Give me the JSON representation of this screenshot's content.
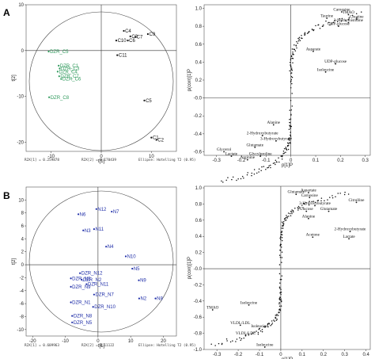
{
  "panels": [
    {
      "id": "A",
      "score": {
        "xlim": [
          -15,
          15
        ],
        "ylim": [
          -22,
          10
        ],
        "xticks": [
          -10,
          0,
          10
        ],
        "yticks": [
          10,
          0,
          -10,
          -20
        ],
        "xlabel": "t[1]",
        "ylabel": "t[2]",
        "footer": {
          "r2x1": "R2X[1] = 0.259878",
          "r2x2": "R2X[2] = 0.170439",
          "ellipse": "Ellipse: Hotelling T2 (0.95)"
        },
        "points": [
          {
            "name": "C4",
            "x": 4.5,
            "y": 4.3,
            "group": "C"
          },
          {
            "name": "C9",
            "x": 9.3,
            "y": 3.6,
            "group": "C"
          },
          {
            "name": "C3",
            "x": 5.8,
            "y": 3.1,
            "group": "C"
          },
          {
            "name": "C7",
            "x": 6.8,
            "y": 3.0,
            "group": "C"
          },
          {
            "name": "C10",
            "x": 3.0,
            "y": 2.2,
            "group": "C"
          },
          {
            "name": "C6",
            "x": 5.3,
            "y": 2.2,
            "group": "C"
          },
          {
            "name": "C11",
            "x": 3.2,
            "y": -1.0,
            "group": "C"
          },
          {
            "name": "C5",
            "x": 8.6,
            "y": -10.9,
            "group": "C"
          },
          {
            "name": "C1",
            "x": 10.0,
            "y": -19.0,
            "group": "C"
          },
          {
            "name": "C2",
            "x": 11.0,
            "y": -19.5,
            "group": "C"
          },
          {
            "name": "DZR_C5",
            "x": -10.5,
            "y": -0.2,
            "group": "D"
          },
          {
            "name": "DZR_C1",
            "x": -8.5,
            "y": -3.3,
            "group": "D"
          },
          {
            "name": "DZR_C3",
            "x": -8.3,
            "y": -3.9,
            "group": "D"
          },
          {
            "name": "DZR_C4",
            "x": -8.7,
            "y": -4.6,
            "group": "D"
          },
          {
            "name": "DZR_C7",
            "x": -8.4,
            "y": -5.6,
            "group": "D"
          },
          {
            "name": "DZR_C6",
            "x": -8.0,
            "y": -6.2,
            "group": "D"
          },
          {
            "name": "DZR_C8",
            "x": -10.4,
            "y": -10.2,
            "group": "D"
          }
        ]
      },
      "loading": {
        "xlim": [
          -0.35,
          0.32
        ],
        "ylim": [
          -0.64,
          1.04
        ],
        "xticks": [
          -0.3,
          -0.2,
          -0.1,
          0,
          0.1,
          0.2,
          0.3
        ],
        "xticklabels": [
          "-0.3",
          "-0.2",
          "-0.1",
          "0",
          "0.1",
          "0.2",
          "0.3"
        ],
        "yticks": [
          1,
          0.8,
          0.6,
          0.4,
          0.2,
          0,
          -0.2,
          -0.4,
          -0.6
        ],
        "yticklabels": [
          "1.0",
          "0.8",
          "0.6",
          "0.4",
          "0.2",
          "-0.0",
          "-0.2",
          "-0.4",
          "-0.6"
        ],
        "xlabel": "p[1]P",
        "ylabel": "p(corr)[1]P",
        "labels": [
          {
            "name": "Carnosine",
            "x": 0.205,
            "y": 0.96
          },
          {
            "name": "TMAO",
            "x": 0.232,
            "y": 0.93
          },
          {
            "name": "Taurine",
            "x": 0.145,
            "y": 0.89
          },
          {
            "name": "Creatine",
            "x": 0.265,
            "y": 0.88
          },
          {
            "name": "3-Methylhistidine",
            "x": 0.232,
            "y": 0.84
          },
          {
            "name": "UDP-glucose",
            "x": 0.192,
            "y": 0.8
          },
          {
            "name": "Asparate",
            "x": 0.09,
            "y": 0.52
          },
          {
            "name": "UDP-glucose",
            "x": 0.18,
            "y": 0.38
          },
          {
            "name": "Isoleucine",
            "x": 0.14,
            "y": 0.29
          },
          {
            "name": "Alanine",
            "x": -0.07,
            "y": -0.3
          },
          {
            "name": "2-Hydroxybutyrate",
            "x": -0.115,
            "y": -0.42
          },
          {
            "name": "3-Hydroxybutyrate",
            "x": -0.06,
            "y": -0.48
          },
          {
            "name": "Glutamate",
            "x": -0.145,
            "y": -0.55
          },
          {
            "name": "Glycerol",
            "x": -0.27,
            "y": -0.6
          },
          {
            "name": "Lactate",
            "x": -0.24,
            "y": -0.65
          },
          {
            "name": "Glycylproline",
            "x": -0.123,
            "y": -0.65
          },
          {
            "name": "Arginine",
            "x": -0.175,
            "y": -0.69
          }
        ]
      }
    },
    {
      "id": "B",
      "score": {
        "xlim": [
          -22,
          24
        ],
        "ylim": [
          -11,
          12
        ],
        "xticks": [
          -20,
          -10,
          0,
          10,
          20
        ],
        "yticks": [
          10,
          8,
          6,
          4,
          2,
          0,
          -2,
          -4,
          -6,
          -8,
          -10
        ],
        "xlabel": "t[1]",
        "ylabel": "t[2]",
        "footer": {
          "r2x1": "R2X[1] = 0.609963",
          "r2x2": "R2X[2] = 0.11122",
          "ellipse": "Ellipse: Hotelling T2 (0.95)"
        },
        "points": [
          {
            "name": "N12",
            "x": -0.5,
            "y": 8.6,
            "group": "N"
          },
          {
            "name": "N7",
            "x": 4.2,
            "y": 8.2,
            "group": "N"
          },
          {
            "name": "N6",
            "x": -6.0,
            "y": 7.8,
            "group": "N"
          },
          {
            "name": "N3",
            "x": -4.5,
            "y": 5.3,
            "group": "N"
          },
          {
            "name": "N11",
            "x": -1.2,
            "y": 5.5,
            "group": "N"
          },
          {
            "name": "N4",
            "x": 2.5,
            "y": 2.8,
            "group": "N"
          },
          {
            "name": "N10",
            "x": 8.5,
            "y": 1.3,
            "group": "N"
          },
          {
            "name": "N5",
            "x": 10.5,
            "y": -0.6,
            "group": "N"
          },
          {
            "name": "N9",
            "x": 12.5,
            "y": -2.4,
            "group": "N"
          },
          {
            "name": "N2",
            "x": 12.6,
            "y": -5.2,
            "group": "N"
          },
          {
            "name": "N8",
            "x": 17.6,
            "y": -5.2,
            "group": "N"
          },
          {
            "name": "DZR_N12",
            "x": -5.5,
            "y": -1.3,
            "group": "D"
          },
          {
            "name": "DZR_N2",
            "x": -5.0,
            "y": -2.3,
            "group": "D"
          },
          {
            "name": "DZR_N3",
            "x": -8.3,
            "y": -2.1,
            "group": "D"
          },
          {
            "name": "DZR_N9",
            "x": -8.3,
            "y": -3.4,
            "group": "D"
          },
          {
            "name": "DZR_N11",
            "x": -3.5,
            "y": -3.0,
            "group": "D"
          },
          {
            "name": "DZR_N7",
            "x": -1.2,
            "y": -4.6,
            "group": "D"
          },
          {
            "name": "DZR_N1",
            "x": -8.3,
            "y": -5.8,
            "group": "D"
          },
          {
            "name": "DZR_N10",
            "x": -1.5,
            "y": -6.5,
            "group": "D"
          },
          {
            "name": "DZR_N8",
            "x": -7.9,
            "y": -7.9,
            "group": "D"
          },
          {
            "name": "DZR_N5",
            "x": -7.9,
            "y": -8.9,
            "group": "D"
          }
        ]
      },
      "loading": {
        "xlim": [
          -0.36,
          0.42
        ],
        "ylim": [
          -1.0,
          1.02
        ],
        "xticks": [
          -0.3,
          -0.2,
          -0.1,
          0,
          0.1,
          0.2,
          0.3,
          0.4
        ],
        "xticklabels": [
          "-0.3",
          "-0.2",
          "-0.1",
          "0",
          "0.1",
          "0.2",
          "0.3",
          "0.4"
        ],
        "yticks": [
          1,
          0.8,
          0.6,
          0.4,
          0.2,
          0,
          -0.2,
          -0.4,
          -0.6,
          -0.8,
          -1
        ],
        "yticklabels": [
          "1.0",
          "0.8",
          "0.6",
          "0.4",
          "0.2",
          "-0.0",
          "-0.2",
          "-0.4",
          "-0.6",
          "-0.8",
          "-1.0"
        ],
        "xlabel": "p[1]P",
        "ylabel": "p(corr)[1]P",
        "labels": [
          {
            "name": "Aspartate",
            "x": 0.13,
            "y": 0.94
          },
          {
            "name": "Glutamate",
            "x": 0.072,
            "y": 0.92
          },
          {
            "name": "Carnosine",
            "x": 0.135,
            "y": 0.88
          },
          {
            "name": "Citrulline",
            "x": 0.355,
            "y": 0.82
          },
          {
            "name": "3-Hydroxybutyrate",
            "x": 0.16,
            "y": 0.78
          },
          {
            "name": "Glucose",
            "x": 0.12,
            "y": 0.71
          },
          {
            "name": "Glutamate",
            "x": 0.225,
            "y": 0.71
          },
          {
            "name": "Alanine",
            "x": 0.13,
            "y": 0.62
          },
          {
            "name": "2-Hydroxybutyrate",
            "x": 0.325,
            "y": 0.46
          },
          {
            "name": "Lactate",
            "x": 0.32,
            "y": 0.37
          },
          {
            "name": "Acetone",
            "x": 0.15,
            "y": 0.39
          },
          {
            "name": "TMAO",
            "x": -0.32,
            "y": -0.51
          },
          {
            "name": "Isoleucine",
            "x": -0.15,
            "y": -0.45
          },
          {
            "name": "VLDL/LDL",
            "x": -0.19,
            "y": -0.7
          },
          {
            "name": "Isoleucine",
            "x": -0.1,
            "y": -0.74
          },
          {
            "name": "VLDL/LDL",
            "x": -0.165,
            "y": -0.83
          },
          {
            "name": "Isoleucine",
            "x": -0.075,
            "y": -0.97
          }
        ]
      }
    }
  ],
  "colors": {
    "groupC": "#111111",
    "groupD_A": "#2f9a5c",
    "groupN": "#1f2ea8",
    "groupD_B": "#1f2ea8"
  }
}
